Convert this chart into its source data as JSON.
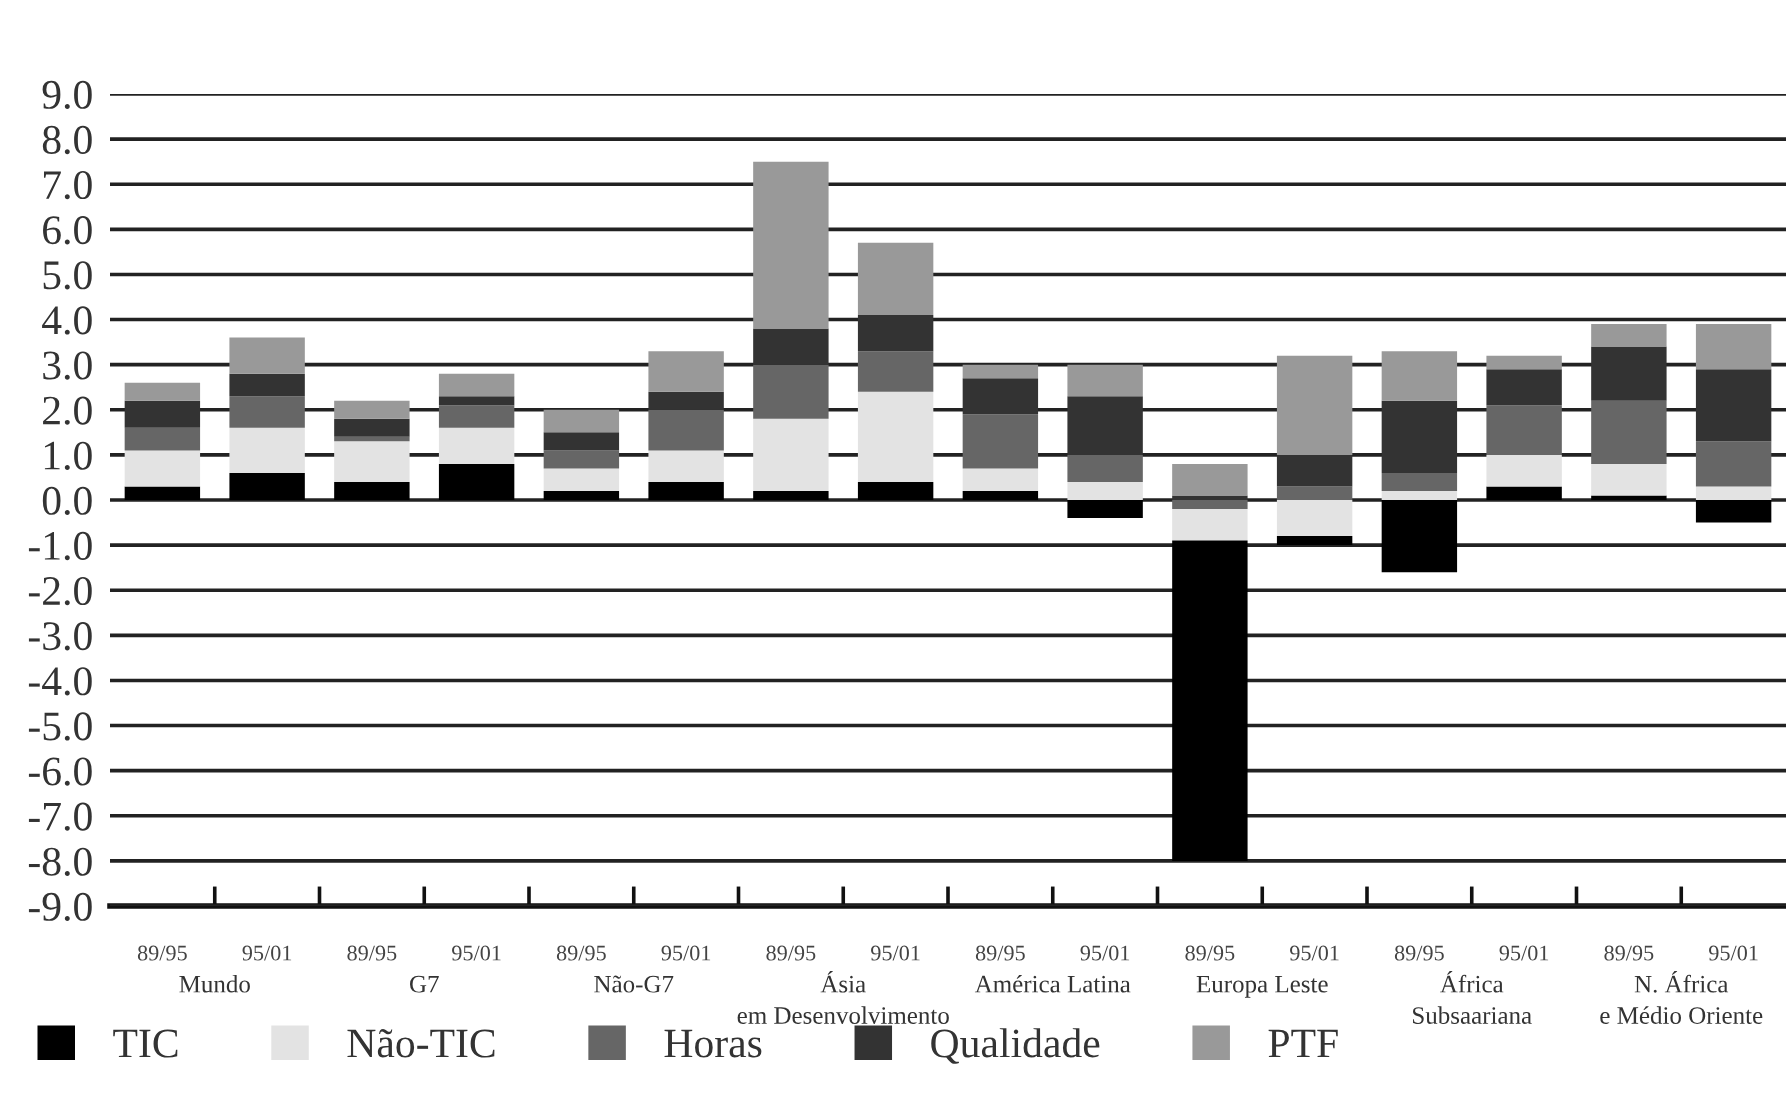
{
  "chart_data": {
    "type": "bar",
    "stacked": true,
    "categories": [
      "89/95",
      "95/01",
      "89/95",
      "95/01",
      "89/95",
      "95/01",
      "89/95",
      "95/01",
      "89/95",
      "95/01",
      "89/95",
      "95/01",
      "89/95",
      "95/01",
      "89/95",
      "95/01"
    ],
    "series": [
      {
        "name": "TIC",
        "color": "#000000",
        "values": [
          0.3,
          0.6,
          0.4,
          0.8,
          0.2,
          0.4,
          0.2,
          0.4,
          0.2,
          -0.4,
          -7.1,
          -0.2,
          -1.6,
          0.3,
          0.1,
          -0.5
        ]
      },
      {
        "name": "Não-TIC",
        "color": "#e3e3e3",
        "values": [
          0.8,
          1.0,
          0.9,
          0.8,
          0.5,
          0.7,
          1.6,
          2.0,
          0.5,
          0.4,
          -0.7,
          -0.8,
          0.2,
          0.7,
          0.7,
          0.3
        ]
      },
      {
        "name": "Horas",
        "color": "#666666",
        "values": [
          0.5,
          0.7,
          0.1,
          0.5,
          0.4,
          0.9,
          1.2,
          0.9,
          1.2,
          0.6,
          -0.2,
          0.3,
          0.4,
          1.1,
          1.4,
          1.0
        ]
      },
      {
        "name": "Qualidade",
        "color": "#333333",
        "values": [
          0.6,
          0.5,
          0.4,
          0.2,
          0.4,
          0.4,
          0.8,
          0.8,
          0.8,
          1.3,
          0.1,
          0.7,
          1.6,
          0.8,
          1.2,
          1.6
        ]
      },
      {
        "name": "PTF",
        "color": "#999999",
        "values": [
          0.4,
          0.8,
          0.4,
          0.5,
          0.5,
          0.9,
          3.7,
          1.6,
          0.3,
          0.7,
          0.7,
          2.2,
          1.1,
          0.3,
          0.5,
          1.0
        ]
      }
    ],
    "annotations": [
      "Mundo",
      "G7",
      "Não-G7",
      "Ásia\nem Desenvolvimento",
      "América Latina",
      "Europa Leste",
      "África\nSubsaariana",
      "N. África\ne Médio Oriente"
    ],
    "ylim": [
      -9,
      9
    ],
    "yticks": [
      {
        "value": 9,
        "label": "9.0"
      },
      {
        "value": 8,
        "label": "8.0"
      },
      {
        "value": 7,
        "label": "7.0"
      },
      {
        "value": 6,
        "label": "6.0"
      },
      {
        "value": 5,
        "label": "5.0"
      },
      {
        "value": 4,
        "label": "4.0"
      },
      {
        "value": 3,
        "label": "3.0"
      },
      {
        "value": 2,
        "label": "2.0"
      },
      {
        "value": 1,
        "label": "1.0"
      },
      {
        "value": 0,
        "label": "0.0"
      },
      {
        "value": -1,
        "label": "-1.0"
      },
      {
        "value": -2,
        "label": "-2.0"
      },
      {
        "value": -3,
        "label": "-3.0"
      },
      {
        "value": -4,
        "label": "-4.0"
      },
      {
        "value": -5,
        "label": "-5.0"
      },
      {
        "value": -6,
        "label": "-6.0"
      },
      {
        "value": -7,
        "label": "-7.0"
      },
      {
        "value": -8,
        "label": "-8.0"
      },
      {
        "value": -9,
        "label": "-9.0"
      }
    ],
    "grid": "y",
    "legend": "bottom left"
  }
}
